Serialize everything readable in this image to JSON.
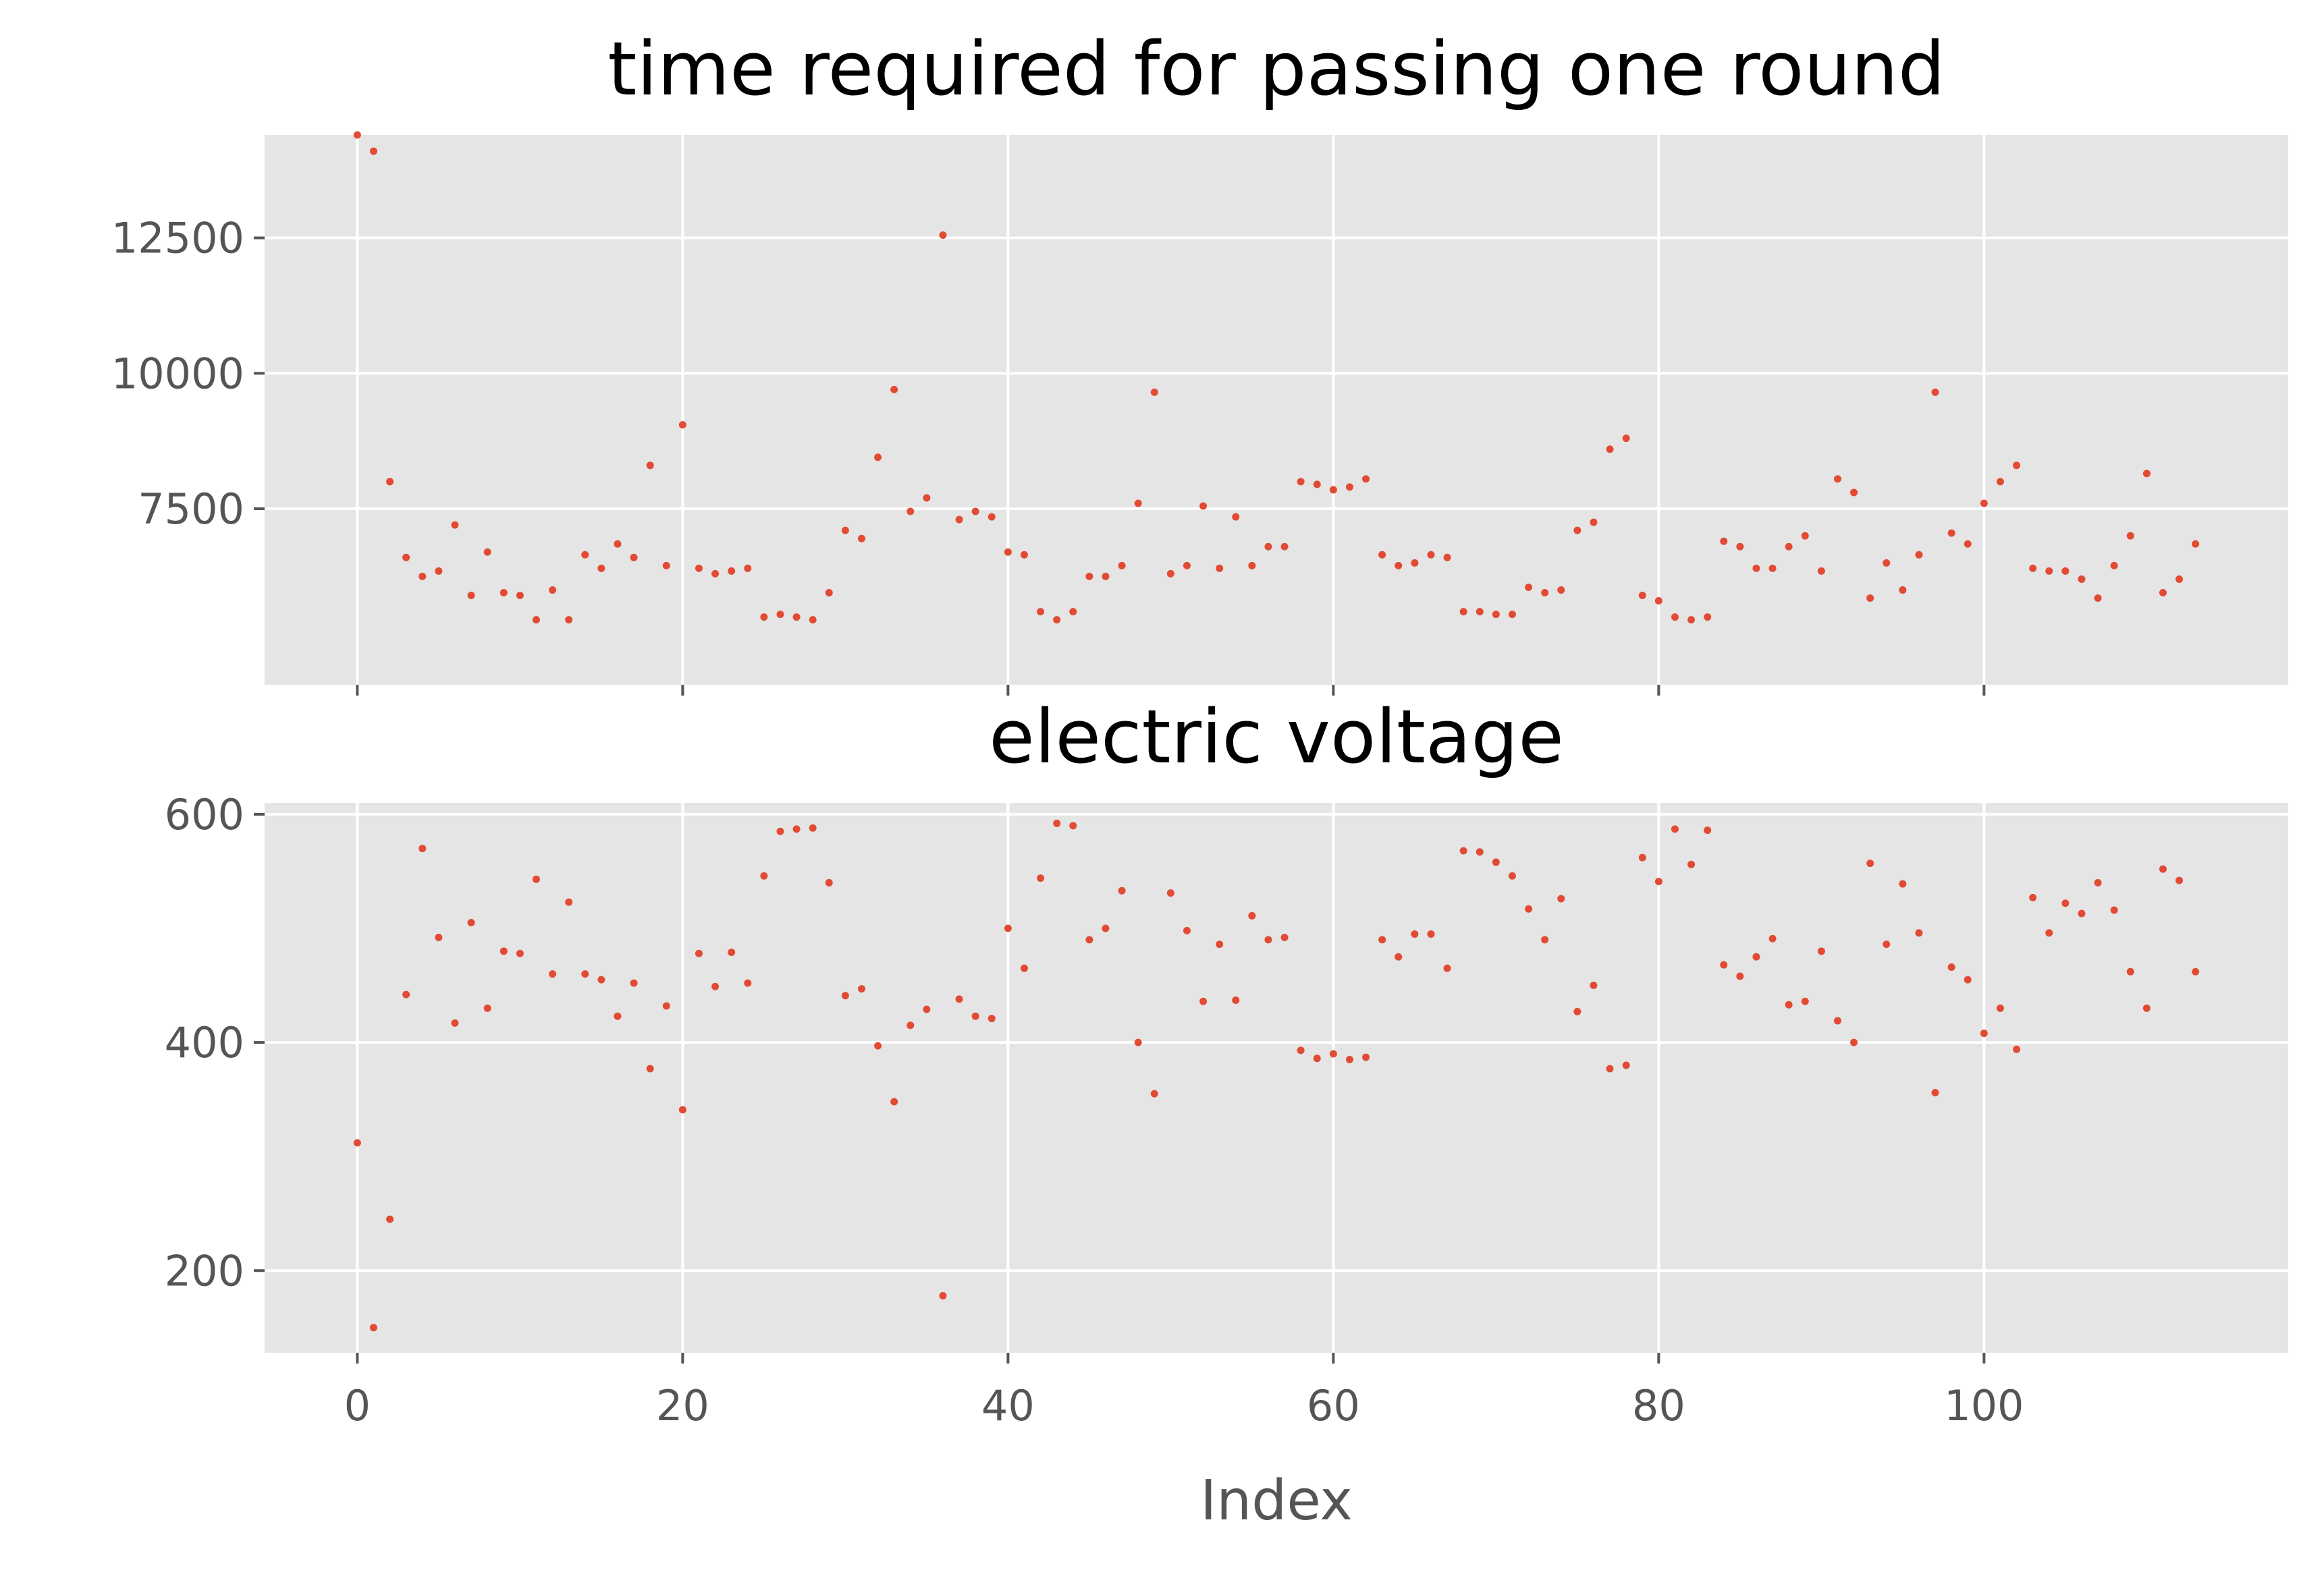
{
  "chart_data": [
    {
      "type": "scatter",
      "title": "time required for passing one round",
      "xlabel": "",
      "ylabel": "",
      "xlim": [
        -5.7,
        118.7
      ],
      "ylim": [
        4250,
        14400
      ],
      "xticks": [
        0,
        20,
        40,
        60,
        80,
        100
      ],
      "xtick_labels_visible": false,
      "yticks": [
        7500,
        10000,
        12500
      ],
      "grid": true,
      "color": "#e24a33",
      "x_start": 0,
      "y": [
        14400,
        14100,
        8000,
        6600,
        6250,
        6350,
        7200,
        5900,
        6700,
        5950,
        5900,
        5450,
        6000,
        5450,
        6650,
        6400,
        6850,
        6600,
        8300,
        6450,
        9050,
        6400,
        6300,
        6350,
        6400,
        5500,
        5550,
        5500,
        5450,
        5950,
        7100,
        6950,
        8450,
        9700,
        7450,
        7700,
        12550,
        7300,
        7450,
        7350,
        6700,
        6650,
        5600,
        5450,
        5600,
        6250,
        6250,
        6450,
        7600,
        9650,
        6300,
        6450,
        7550,
        6400,
        7350,
        6450,
        6800,
        6800,
        8000,
        7950,
        7850,
        7900,
        8050,
        6650,
        6450,
        6500,
        6650,
        6600,
        5600,
        5600,
        5550,
        5550,
        6050,
        5950,
        6000,
        7100,
        7250,
        8600,
        8800,
        5900,
        5800,
        5500,
        5450,
        5500,
        6900,
        6800,
        6400,
        6400,
        6800,
        7000,
        6350,
        8050,
        7800,
        5850,
        6500,
        6000,
        6650,
        9650,
        7050,
        6850,
        7600,
        8000,
        8300,
        6400,
        6350,
        6350,
        6200,
        5850,
        6450,
        7000,
        8150,
        5950,
        6200,
        6850
      ]
    },
    {
      "type": "scatter",
      "title": "electric voltage",
      "xlabel": "Index",
      "ylabel": "",
      "xlim": [
        -5.7,
        118.7
      ],
      "ylim": [
        128,
        610
      ],
      "xticks": [
        0,
        20,
        40,
        60,
        80,
        100
      ],
      "xtick_labels": [
        "0",
        "20",
        "40",
        "60",
        "80",
        "100"
      ],
      "yticks": [
        200,
        400,
        600
      ],
      "grid": true,
      "color": "#e24a33",
      "x_start": 0,
      "y": [
        312,
        150,
        245,
        442,
        570,
        492,
        417,
        505,
        430,
        480,
        478,
        543,
        460,
        523,
        460,
        455,
        423,
        452,
        377,
        432,
        341,
        478,
        449,
        479,
        452,
        546,
        585,
        587,
        588,
        540,
        441,
        447,
        397,
        348,
        415,
        429,
        178,
        438,
        423,
        421,
        500,
        465,
        544,
        592,
        590,
        490,
        500,
        533,
        400,
        355,
        531,
        498,
        436,
        486,
        437,
        511,
        490,
        492,
        393,
        386,
        390,
        385,
        387,
        490,
        475,
        495,
        495,
        465,
        568,
        567,
        558,
        546,
        517,
        490,
        526,
        427,
        450,
        377,
        380,
        562,
        541,
        587,
        556,
        586,
        468,
        458,
        475,
        491,
        433,
        436,
        480,
        419,
        400,
        557,
        486,
        539,
        496,
        356,
        466,
        455,
        408,
        430,
        394,
        527,
        496,
        522,
        513,
        540,
        516,
        462,
        430,
        552,
        542,
        462
      ]
    }
  ]
}
